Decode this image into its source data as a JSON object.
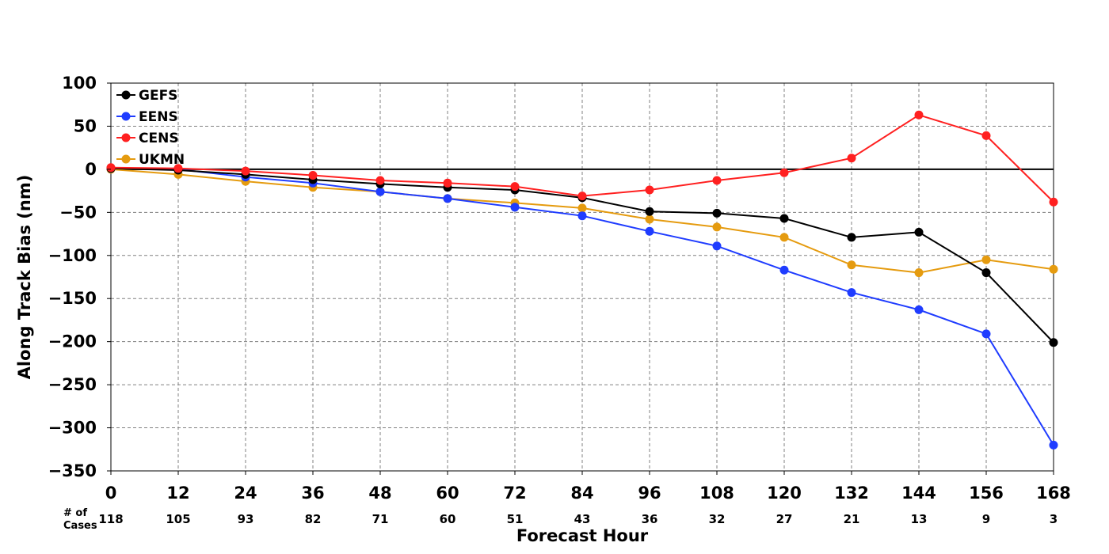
{
  "chart_data": {
    "type": "line",
    "xlabel": "Forecast Hour",
    "ylabel": "Along Track Bias (nm)",
    "x": [
      0,
      12,
      24,
      36,
      48,
      60,
      72,
      84,
      96,
      108,
      120,
      132,
      144,
      156,
      168
    ],
    "xlim": [
      0,
      168
    ],
    "ylim": [
      -350,
      100
    ],
    "xticks": [
      0,
      12,
      24,
      36,
      48,
      60,
      72,
      84,
      96,
      108,
      120,
      132,
      144,
      156,
      168
    ],
    "yticks": [
      100,
      50,
      0,
      -50,
      -100,
      -150,
      -200,
      -250,
      -300,
      -350
    ],
    "ytick_labels": [
      "100",
      "50",
      "0",
      "−50",
      "−100",
      "−150",
      "−200",
      "−250",
      "−300",
      "−350"
    ],
    "grid": true,
    "zero_line": true,
    "legend_position": "top-left",
    "cases_label": "# of Cases",
    "cases_label_lines": [
      "# of",
      "Cases"
    ],
    "cases": [
      118,
      105,
      93,
      82,
      71,
      60,
      51,
      43,
      36,
      32,
      27,
      21,
      13,
      9,
      3
    ],
    "series": [
      {
        "name": "GEFS",
        "color": "#000000",
        "values": [
          1,
          -1,
          -6,
          -12,
          -17,
          -21,
          -24,
          -33,
          -49,
          -51,
          -57,
          -79,
          -73,
          -120,
          -201
        ]
      },
      {
        "name": "EENS",
        "color": "#1f3cff",
        "values": [
          1,
          0,
          -9,
          -16,
          -26,
          -34,
          -44,
          -54,
          -72,
          -89,
          -117,
          -143,
          -163,
          -191,
          -320
        ]
      },
      {
        "name": "CENS",
        "color": "#ff2020",
        "values": [
          2,
          1,
          -2,
          -7,
          -13,
          -16,
          -20,
          -31,
          -24,
          -13,
          -4,
          13,
          63,
          39,
          -38
        ]
      },
      {
        "name": "UKMN",
        "color": "#e59b0f",
        "values": [
          0,
          -6,
          -14,
          -21,
          -26,
          -34,
          -39,
          -45,
          -58,
          -67,
          -79,
          -111,
          -120,
          -105,
          -116
        ]
      }
    ]
  }
}
